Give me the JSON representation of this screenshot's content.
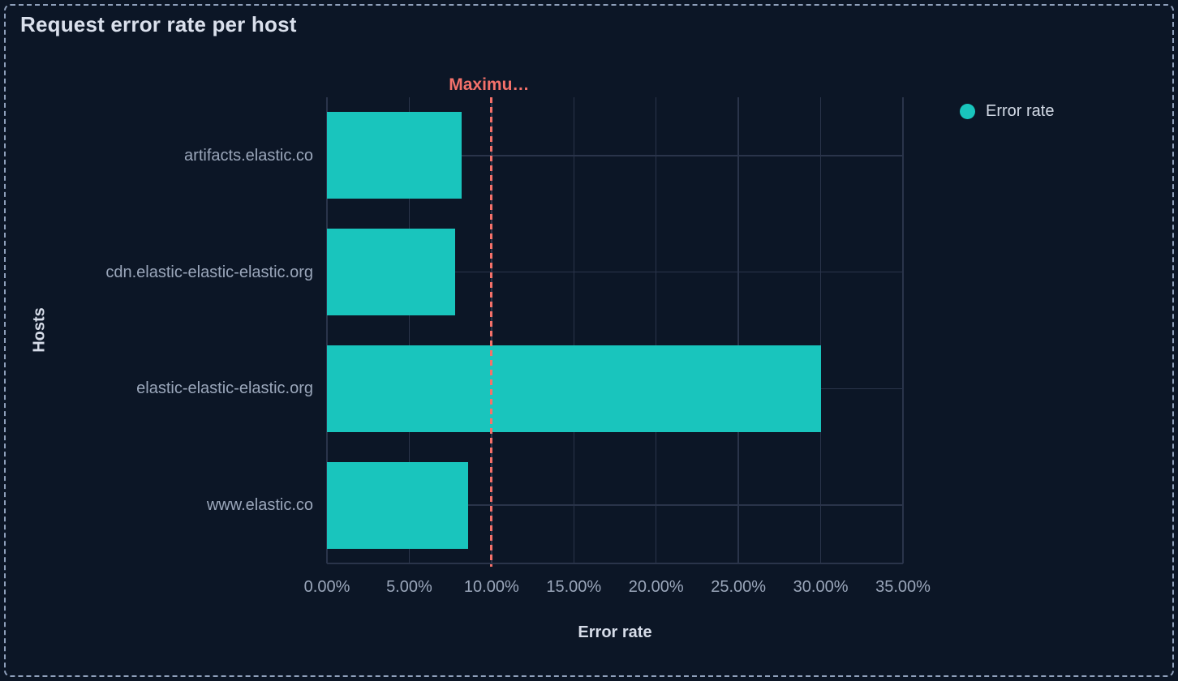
{
  "panel": {
    "title": "Request error rate per host"
  },
  "colors": {
    "background": "#0c1626",
    "panel_border": "#8fa0bb",
    "grid": "#2a344a",
    "bar": "#19c5bd",
    "threshold": "#f4716a",
    "text_bright": "#dae0ec",
    "text_muted": "#9aa6ba"
  },
  "chart_data": {
    "type": "bar",
    "orientation": "horizontal",
    "title": "Request error rate per host",
    "categories": [
      "artifacts.elastic.co",
      "cdn.elastic-elastic-elastic.org",
      "elastic-elastic-elastic.org",
      "www.elastic.co"
    ],
    "series": [
      {
        "name": "Error rate",
        "color": "#19c5bd",
        "values": [
          8.2,
          7.8,
          30.0,
          8.6
        ]
      }
    ],
    "unit": "%",
    "xlabel": "Error rate",
    "ylabel": "Hosts",
    "xlim": [
      0,
      35
    ],
    "x_ticks": [
      {
        "value": 0,
        "label": "0.00%"
      },
      {
        "value": 5,
        "label": "5.00%"
      },
      {
        "value": 10,
        "label": "10.00%"
      },
      {
        "value": 15,
        "label": "15.00%"
      },
      {
        "value": 20,
        "label": "20.00%"
      },
      {
        "value": 25,
        "label": "25.00%"
      },
      {
        "value": 30,
        "label": "30.00%"
      },
      {
        "value": 35,
        "label": "35.00%"
      }
    ],
    "grid": true,
    "legend": {
      "position": "top-right",
      "items": [
        {
          "label": "Error rate",
          "color": "#19c5bd"
        }
      ]
    },
    "threshold": {
      "label": "Maximu…",
      "value": 10,
      "color": "#f4716a",
      "style": "dashed"
    }
  }
}
